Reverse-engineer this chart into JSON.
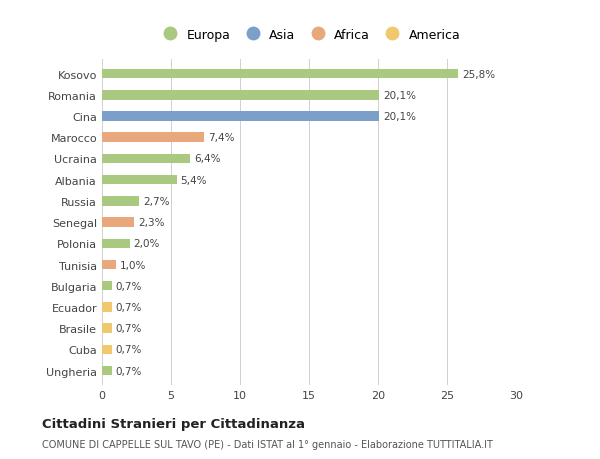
{
  "countries": [
    "Kosovo",
    "Romania",
    "Cina",
    "Marocco",
    "Ucraina",
    "Albania",
    "Russia",
    "Senegal",
    "Polonia",
    "Tunisia",
    "Bulgaria",
    "Ecuador",
    "Brasile",
    "Cuba",
    "Ungheria"
  ],
  "values": [
    25.8,
    20.1,
    20.1,
    7.4,
    6.4,
    5.4,
    2.7,
    2.3,
    2.0,
    1.0,
    0.7,
    0.7,
    0.7,
    0.7,
    0.7
  ],
  "labels": [
    "25,8%",
    "20,1%",
    "20,1%",
    "7,4%",
    "6,4%",
    "5,4%",
    "2,7%",
    "2,3%",
    "2,0%",
    "1,0%",
    "0,7%",
    "0,7%",
    "0,7%",
    "0,7%",
    "0,7%"
  ],
  "continents": [
    "Europa",
    "Europa",
    "Asia",
    "Africa",
    "Europa",
    "Europa",
    "Europa",
    "Africa",
    "Europa",
    "Africa",
    "Europa",
    "America",
    "America",
    "America",
    "Europa"
  ],
  "continent_colors": {
    "Europa": "#a8c97f",
    "Asia": "#7b9fc8",
    "Africa": "#e8a87c",
    "America": "#f0c96e"
  },
  "title": "Cittadini Stranieri per Cittadinanza",
  "subtitle": "COMUNE DI CAPPELLE SUL TAVO (PE) - Dati ISTAT al 1° gennaio - Elaborazione TUTTITALIA.IT",
  "xlim": [
    0,
    30
  ],
  "xticks": [
    0,
    5,
    10,
    15,
    20,
    25,
    30
  ],
  "background_color": "#ffffff",
  "bar_height": 0.45,
  "legend_order": [
    "Europa",
    "Asia",
    "Africa",
    "America"
  ]
}
